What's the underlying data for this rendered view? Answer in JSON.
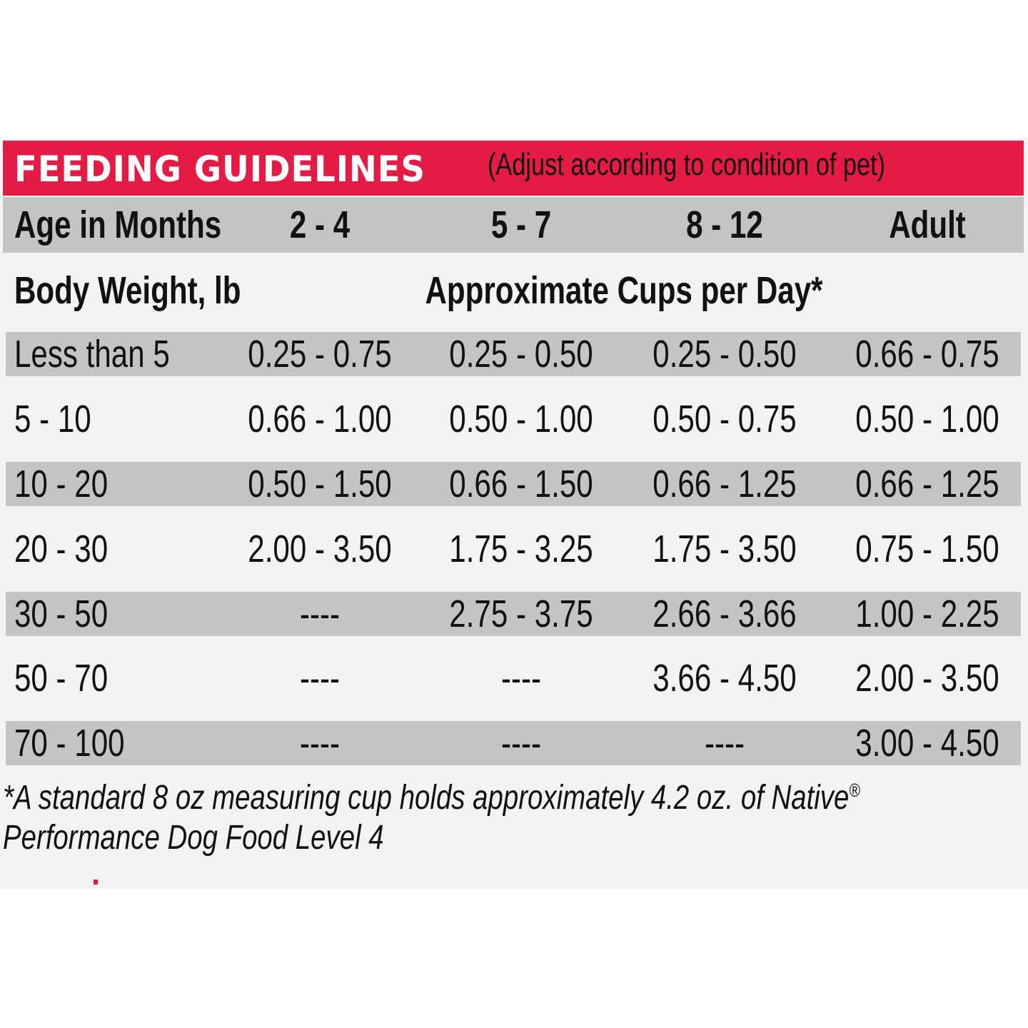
{
  "header": {
    "title": "FEEDING GUIDELINES",
    "subtitle": "(Adjust according to condition of pet)"
  },
  "age_row": {
    "label": "Age in Months",
    "columns": [
      "2 - 4",
      "5 - 7",
      "8 - 12",
      "Adult"
    ]
  },
  "subheader": {
    "label": "Body Weight, lb",
    "value_heading": "Approximate Cups per Day*"
  },
  "rows": [
    {
      "weight": "Less than 5",
      "values": [
        "0.25 - 0.75",
        "0.25 - 0.50",
        "0.25 - 0.50",
        "0.66 - 0.75"
      ]
    },
    {
      "weight": "5 - 10",
      "values": [
        "0.66 - 1.00",
        "0.50 - 1.00",
        "0.50 - 0.75",
        "0.50 - 1.00"
      ]
    },
    {
      "weight": "10 - 20",
      "values": [
        "0.50 - 1.50",
        "0.66 - 1.50",
        "0.66 - 1.25",
        "0.66 - 1.25"
      ]
    },
    {
      "weight": "20 - 30",
      "values": [
        "2.00 - 3.50",
        "1.75 - 3.25",
        "1.75 - 3.50",
        "0.75 - 1.50"
      ]
    },
    {
      "weight": "30 - 50",
      "values": [
        "----",
        "2.75 - 3.75",
        "2.66 - 3.66",
        "1.00 - 2.25"
      ]
    },
    {
      "weight": "50 - 70",
      "values": [
        "----",
        "----",
        "3.66 - 4.50",
        "2.00 - 3.50"
      ]
    },
    {
      "weight": "70 - 100",
      "values": [
        "----",
        "----",
        "----",
        "3.00 - 4.50"
      ]
    }
  ],
  "footnote": {
    "line1": "*A standard 8 oz measuring cup holds approximately 4.2 oz. of Native",
    "registered": "®",
    "line2": "Performance Dog Food Level 4"
  },
  "colors": {
    "accent": "#e31b45",
    "row_shade": "#c4c4c4",
    "background": "#f3f3f3"
  }
}
